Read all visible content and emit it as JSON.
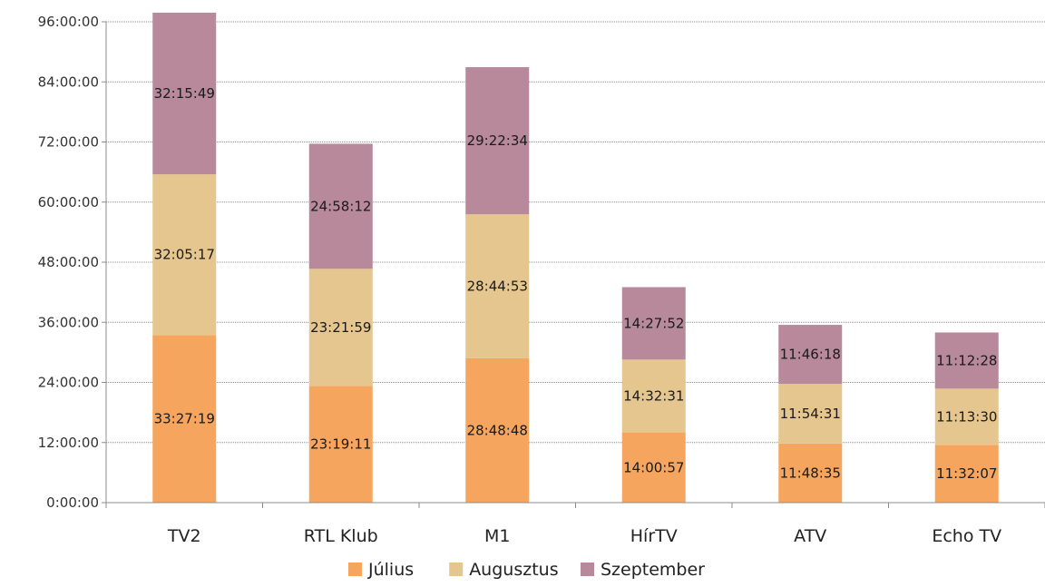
{
  "chart_data": {
    "type": "bar",
    "stacked": true,
    "categories": [
      "TV2",
      "RTL Klub",
      "M1",
      "HírTV",
      "ATV",
      "Echo TV"
    ],
    "yticks": [
      "0:00:00",
      "12:00:00",
      "24:00:00",
      "36:00:00",
      "48:00:00",
      "60:00:00",
      "72:00:00",
      "84:00:00",
      "96:00:00"
    ],
    "ylim_hours": [
      0,
      96
    ],
    "grid": true,
    "legend_position": "bottom",
    "series": [
      {
        "name": "Július",
        "color": "#F6A55E",
        "labels": [
          "33:27:19",
          "23:19:11",
          "28:48:48",
          "14:00:57",
          "11:48:35",
          "11:32:07"
        ]
      },
      {
        "name": "Augusztus",
        "color": "#E5C68E",
        "labels": [
          "32:05:17",
          "23:21:59",
          "28:44:53",
          "14:32:31",
          "11:54:31",
          "11:13:30"
        ]
      },
      {
        "name": "Szeptember",
        "color": "#B7899B",
        "labels": [
          "32:15:49",
          "24:58:12",
          "29:22:34",
          "14:27:52",
          "11:46:18",
          "11:12:28"
        ]
      }
    ]
  }
}
